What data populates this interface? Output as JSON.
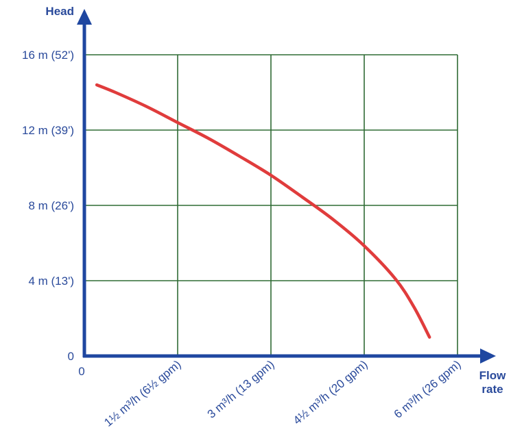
{
  "chart_data": {
    "type": "line",
    "xlabel": [
      "Flow",
      "rate"
    ],
    "ylabel": "Head",
    "xlim": [
      0,
      6
    ],
    "ylim": [
      0,
      16
    ],
    "x_unit": "m³/h",
    "y_unit": "m",
    "x_ticks": [
      {
        "value": 0,
        "label": "0"
      },
      {
        "value": 1.5,
        "label": "1½ m³/h (6½ gpm)"
      },
      {
        "value": 3,
        "label": "3 m³/h (13 gpm)"
      },
      {
        "value": 4.5,
        "label": "4½ m³/h (20 gpm)"
      },
      {
        "value": 6,
        "label": "6 m³/h (26 gpm)"
      }
    ],
    "y_ticks": [
      {
        "value": 0,
        "label": "0"
      },
      {
        "value": 4,
        "label": "4 m (13')"
      },
      {
        "value": 8,
        "label": "8 m (26')"
      },
      {
        "value": 12,
        "label": "12 m (39')"
      },
      {
        "value": 16,
        "label": "16 m (52')"
      }
    ],
    "grid": true,
    "series": [
      {
        "color": "#e03c3c",
        "points": [
          [
            0.2,
            14.4
          ],
          [
            0.5,
            14.0
          ],
          [
            1.0,
            13.25
          ],
          [
            1.5,
            12.4
          ],
          [
            2.0,
            11.55
          ],
          [
            2.5,
            10.6
          ],
          [
            3.0,
            9.6
          ],
          [
            3.5,
            8.45
          ],
          [
            4.0,
            7.25
          ],
          [
            4.5,
            5.85
          ],
          [
            5.0,
            4.1
          ],
          [
            5.3,
            2.6
          ],
          [
            5.55,
            1.0
          ]
        ]
      }
    ],
    "colors": {
      "axis": "#1f47a0",
      "grid": "#2f6b34",
      "label": "#2a4a9b"
    }
  }
}
